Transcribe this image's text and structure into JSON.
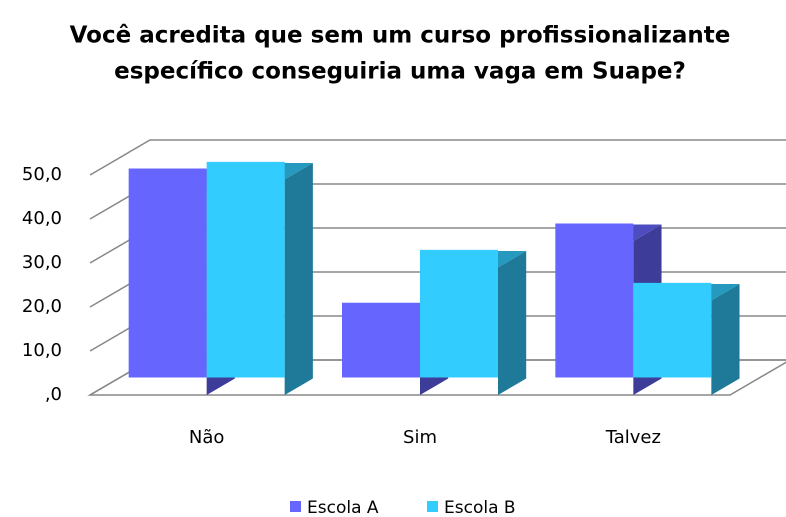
{
  "chart_data": {
    "type": "bar3d",
    "title": [
      "Você acredita que sem um curso profissionalizante",
      "específico conseguiria uma vaga em Suape?"
    ],
    "categories": [
      "Não",
      "Sim",
      "Talvez"
    ],
    "series": [
      {
        "name": "Escola A",
        "color": "#6666ff",
        "values": [
          47.5,
          17,
          35
        ]
      },
      {
        "name": "Escola B",
        "color": "#33ccff",
        "values": [
          49,
          29,
          21.5
        ]
      }
    ],
    "ylim": [
      0,
      50
    ],
    "yticks": [
      {
        "value": 0,
        "label": ",0"
      },
      {
        "value": 10,
        "label": "10,0"
      },
      {
        "value": 20,
        "label": "20,0"
      },
      {
        "value": 30,
        "label": "30,0"
      },
      {
        "value": 40,
        "label": "40,0"
      },
      {
        "value": 50,
        "label": "50,0"
      }
    ],
    "grid": true,
    "legend": "bottom"
  }
}
